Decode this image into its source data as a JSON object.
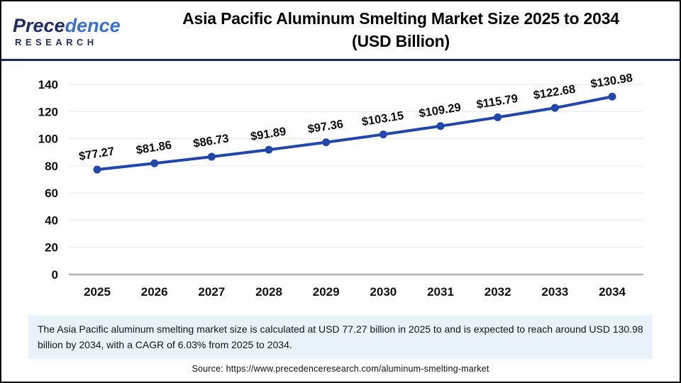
{
  "logo": {
    "part1": "Prece",
    "part2": "dence",
    "line2": "RESEARCH"
  },
  "header": {
    "title_line1": "Asia Pacific Aluminum Smelting Market Size 2025 to 2034",
    "title_line2": "(USD Billion)"
  },
  "chart_data": {
    "type": "line",
    "title": "Asia Pacific Aluminum Smelting Market Size 2025 to 2034 (USD Billion)",
    "categories": [
      "2025",
      "2026",
      "2027",
      "2028",
      "2029",
      "2030",
      "2031",
      "2032",
      "2033",
      "2034"
    ],
    "series": [
      {
        "name": "Asia Pacific Aluminum Smelting Market Size (USD Billion)",
        "values": [
          77.27,
          81.86,
          86.73,
          91.89,
          97.36,
          103.15,
          109.29,
          115.79,
          122.68,
          130.98
        ]
      }
    ],
    "point_labels": [
      "$77.27",
      "$81.86",
      "$86.73",
      "$91.89",
      "$97.36",
      "$103.15",
      "$109.29",
      "$115.79",
      "$122.68",
      "$130.98"
    ],
    "xlabel": "",
    "ylabel": "",
    "ylim": [
      0,
      140
    ],
    "yticks": [
      0,
      20,
      40,
      60,
      80,
      100,
      120,
      140
    ],
    "grid": true,
    "legend_position": "none",
    "line_color": "#2247ab",
    "marker_color": "#2247ab",
    "grid_color": "#e7e7e7",
    "axis_color": "#b3b3b3"
  },
  "note": {
    "text": "The Asia Pacific aluminum smelting market size is calculated at USD 77.27 billion in 2025 to and is expected to reach around USD 130.98 billion by 2034, with a CAGR of 6.03% from 2025 to 2034."
  },
  "source": {
    "text": "Source: https://www.precedenceresearch.com/aluminum-smelting-market"
  },
  "colors": {
    "header_divider": "#1b2a5a",
    "note_background": "#e9f1f9",
    "logo_dark_blue": "#222d66",
    "logo_light_blue": "#3a6fd0"
  }
}
